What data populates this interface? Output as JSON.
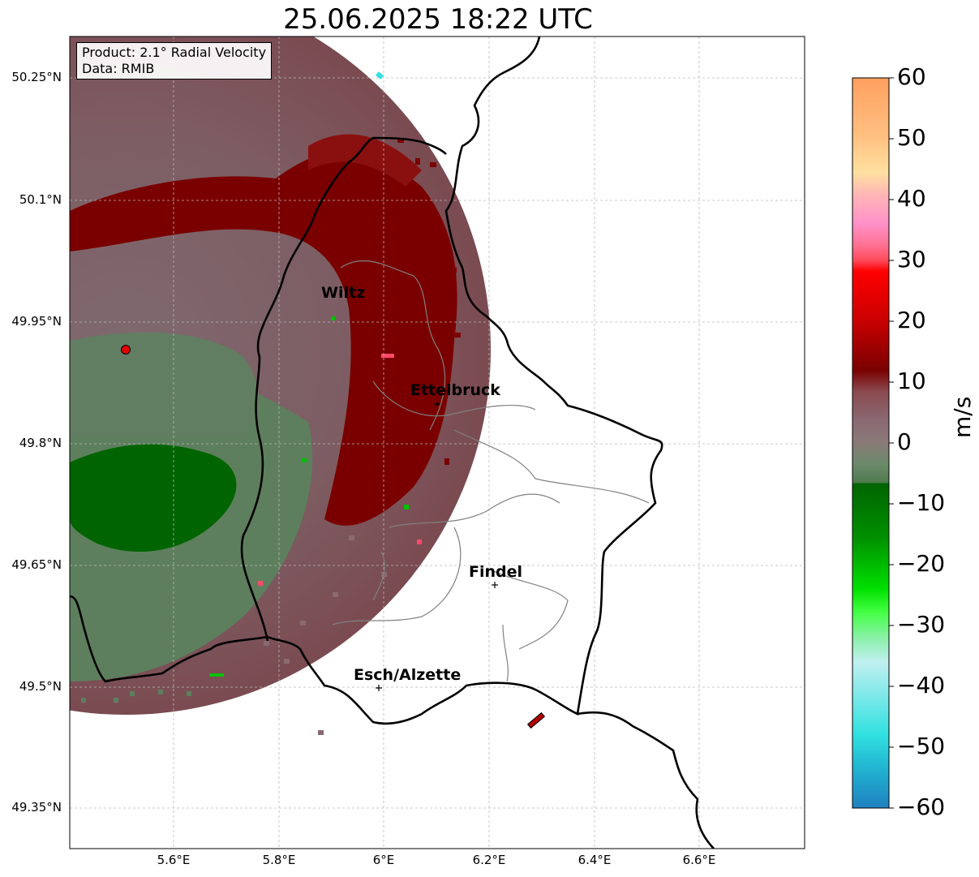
{
  "title": "25.06.2025 18:22 UTC",
  "info_box": {
    "product": "Product: 2.1° Radial Velocity",
    "data": "Data: RMIB"
  },
  "axes": {
    "x_ticks": [
      "5.6°E",
      "5.8°E",
      "6°E",
      "6.2°E",
      "6.4°E",
      "6.6°E"
    ],
    "y_ticks": [
      "50.25°N",
      "50.1°N",
      "49.95°N",
      "49.8°N",
      "49.65°N",
      "49.5°N",
      "49.35°N"
    ],
    "lon_range": [
      5.4,
      6.8
    ],
    "lat_range": [
      49.3,
      50.3
    ],
    "grid": true
  },
  "cities": [
    {
      "name": "Wiltz"
    },
    {
      "name": "Ettelbruck"
    },
    {
      "name": "Findel"
    },
    {
      "name": "Esch/Alzette"
    }
  ],
  "colorbar": {
    "unit": "m/s",
    "range": [
      -60,
      60
    ],
    "ticks": [
      "60",
      "50",
      "40",
      "30",
      "20",
      "10",
      "0",
      "−10",
      "−20",
      "−30",
      "−40",
      "−50",
      "−60"
    ]
  },
  "colors": {
    "strong_inbound_red": "#7a0000",
    "outbound_green": "#006400",
    "near_zero_mauve": "#8a6a73",
    "near_zero_green": "#5a7a5a",
    "radar_site": "#e00000"
  }
}
